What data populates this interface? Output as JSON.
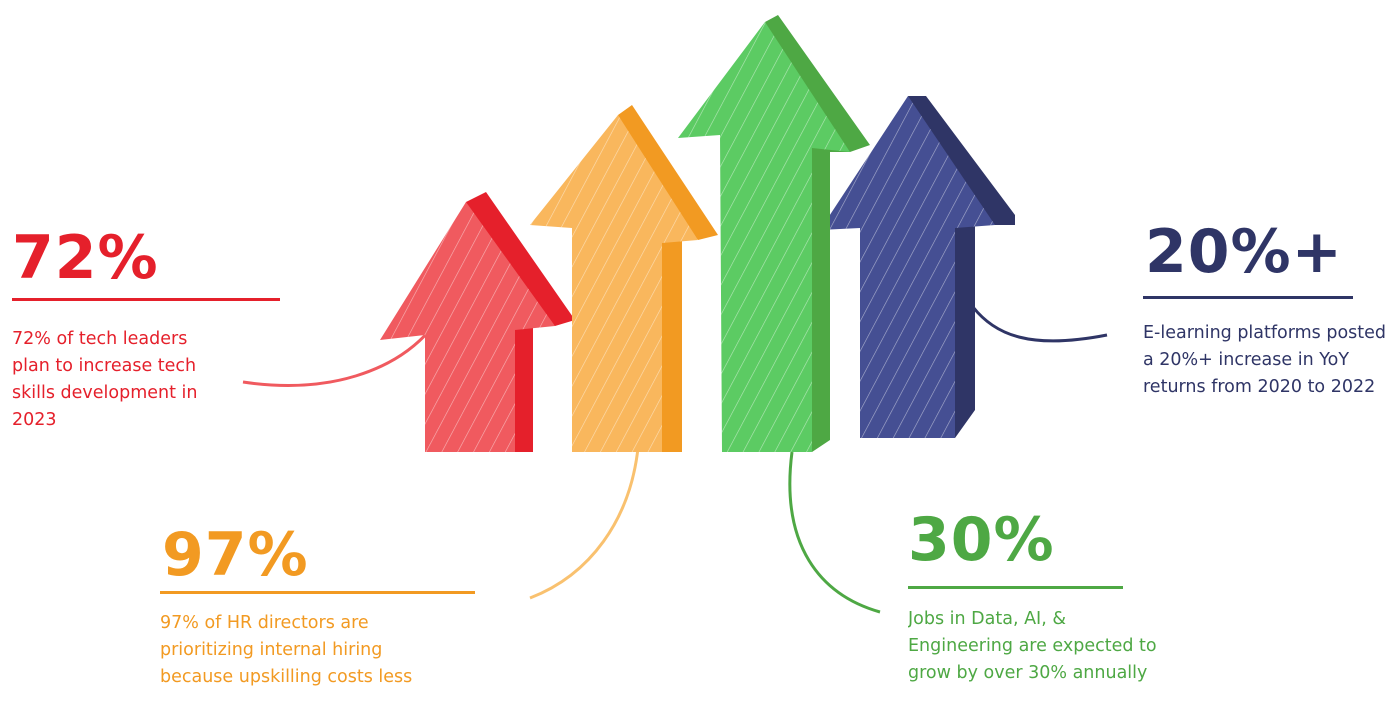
{
  "stats": [
    {
      "id": "red",
      "value": "72%",
      "text": "72% of tech leaders plan to increase tech skills development in 2023",
      "color": "#e5202b"
    },
    {
      "id": "orange",
      "value": "97%",
      "text": "97% of HR directors are prioritizing internal hiring because upskilling costs less",
      "color": "#f29a22"
    },
    {
      "id": "green",
      "value": "30%",
      "text": "Jobs in Data, AI, & Engineering are expected to grow by over 30% annually",
      "color": "#4ea844"
    },
    {
      "id": "navy",
      "value": "20%+",
      "text": "E-learning platforms posted a 20%+ increase in YoY returns from 2020 to 2022",
      "color": "#2f3566"
    }
  ],
  "arrows": [
    {
      "name": "red-arrow-icon",
      "front": "#f05a5f",
      "side": "#e5202b"
    },
    {
      "name": "orange-arrow-icon",
      "front": "#f9b75d",
      "side": "#f29a22"
    },
    {
      "name": "green-arrow-icon",
      "front": "#5ccb63",
      "side": "#4ea844"
    },
    {
      "name": "navy-arrow-icon",
      "front": "#454f93",
      "side": "#2f3566"
    }
  ]
}
